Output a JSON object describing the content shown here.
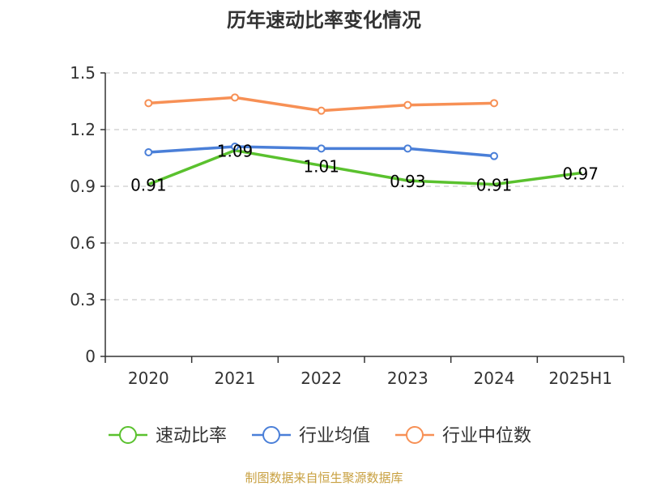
{
  "title": "历年速动比率变化情况",
  "source": "制图数据来自恒生聚源数据库",
  "colors": {
    "speed_ratio": "#5ac12e",
    "industry_avg": "#4a7fd8",
    "industry_median": "#f79055",
    "grid": "#cccccc",
    "axis": "#333333",
    "source_text": "#c8a040"
  },
  "chart_data": {
    "type": "line",
    "title": "历年速动比率变化情况",
    "categories": [
      "2020",
      "2021",
      "2022",
      "2023",
      "2024",
      "2025H1"
    ],
    "yticks": [
      "0",
      "0.3",
      "0.6",
      "0.9",
      "1.2",
      "1.5"
    ],
    "ylim": [
      0,
      1.5
    ],
    "grid": true,
    "legend_position": "bottom",
    "series": [
      {
        "name": "速动比率",
        "color": "#5ac12e",
        "values": [
          0.91,
          1.09,
          1.01,
          0.93,
          0.91,
          0.97
        ],
        "labels": [
          "0.91",
          "1.09",
          "1.01",
          "0.93",
          "0.91",
          "0.97"
        ],
        "markers": false
      },
      {
        "name": "行业均值",
        "color": "#4a7fd8",
        "values": [
          1.08,
          1.11,
          1.1,
          1.1,
          1.06,
          null
        ],
        "markers": true
      },
      {
        "name": "行业中位数",
        "color": "#f79055",
        "values": [
          1.34,
          1.37,
          1.3,
          1.33,
          1.34,
          null
        ],
        "markers": true
      }
    ]
  }
}
